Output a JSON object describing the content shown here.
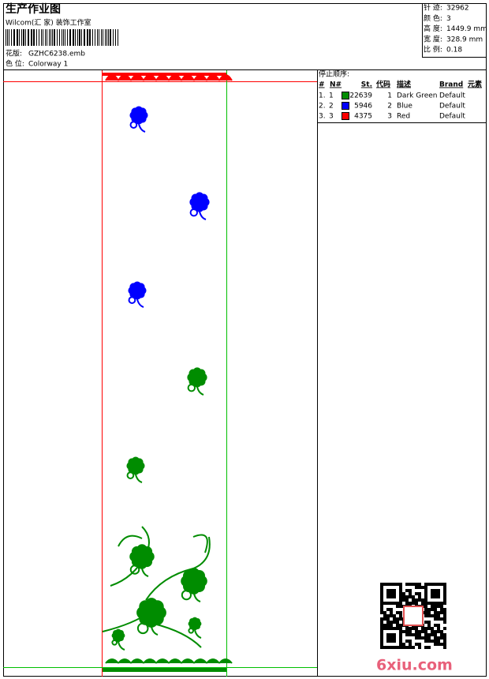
{
  "header": {
    "title": "生产作业图",
    "company": "Wilcom(汇 家) 装饰工作室",
    "design_label": "花版:",
    "design": "GZHC6238.emb",
    "colorway_label": "色 位:",
    "colorway": "Colorway 1"
  },
  "info": {
    "rows": [
      [
        "针 迹:",
        "32962"
      ],
      [
        "颜 色:",
        "3"
      ],
      [
        "高 度:",
        "1449.9 mm"
      ],
      [
        "宽 度:",
        "328.9 mm"
      ],
      [
        "比 例:",
        "0.18"
      ]
    ]
  },
  "stop_sequence": {
    "title": "停止顺序:",
    "headers": [
      "#",
      "N#",
      "St.",
      "代码",
      "描述",
      "Brand",
      "元素"
    ],
    "rows": [
      {
        "index": "1.",
        "n": "1",
        "color": "#008c00",
        "stitches": "22639",
        "code": "1",
        "description": "Dark Green",
        "brand": "Default"
      },
      {
        "index": "2.",
        "n": "2",
        "color": "#0000ff",
        "stitches": "5946",
        "code": "2",
        "description": "Blue",
        "brand": "Default"
      },
      {
        "index": "3.",
        "n": "3",
        "color": "#ff0000",
        "stitches": "4375",
        "code": "3",
        "description": "Red",
        "brand": "Default"
      }
    ]
  },
  "watermark": "6xiu.com"
}
